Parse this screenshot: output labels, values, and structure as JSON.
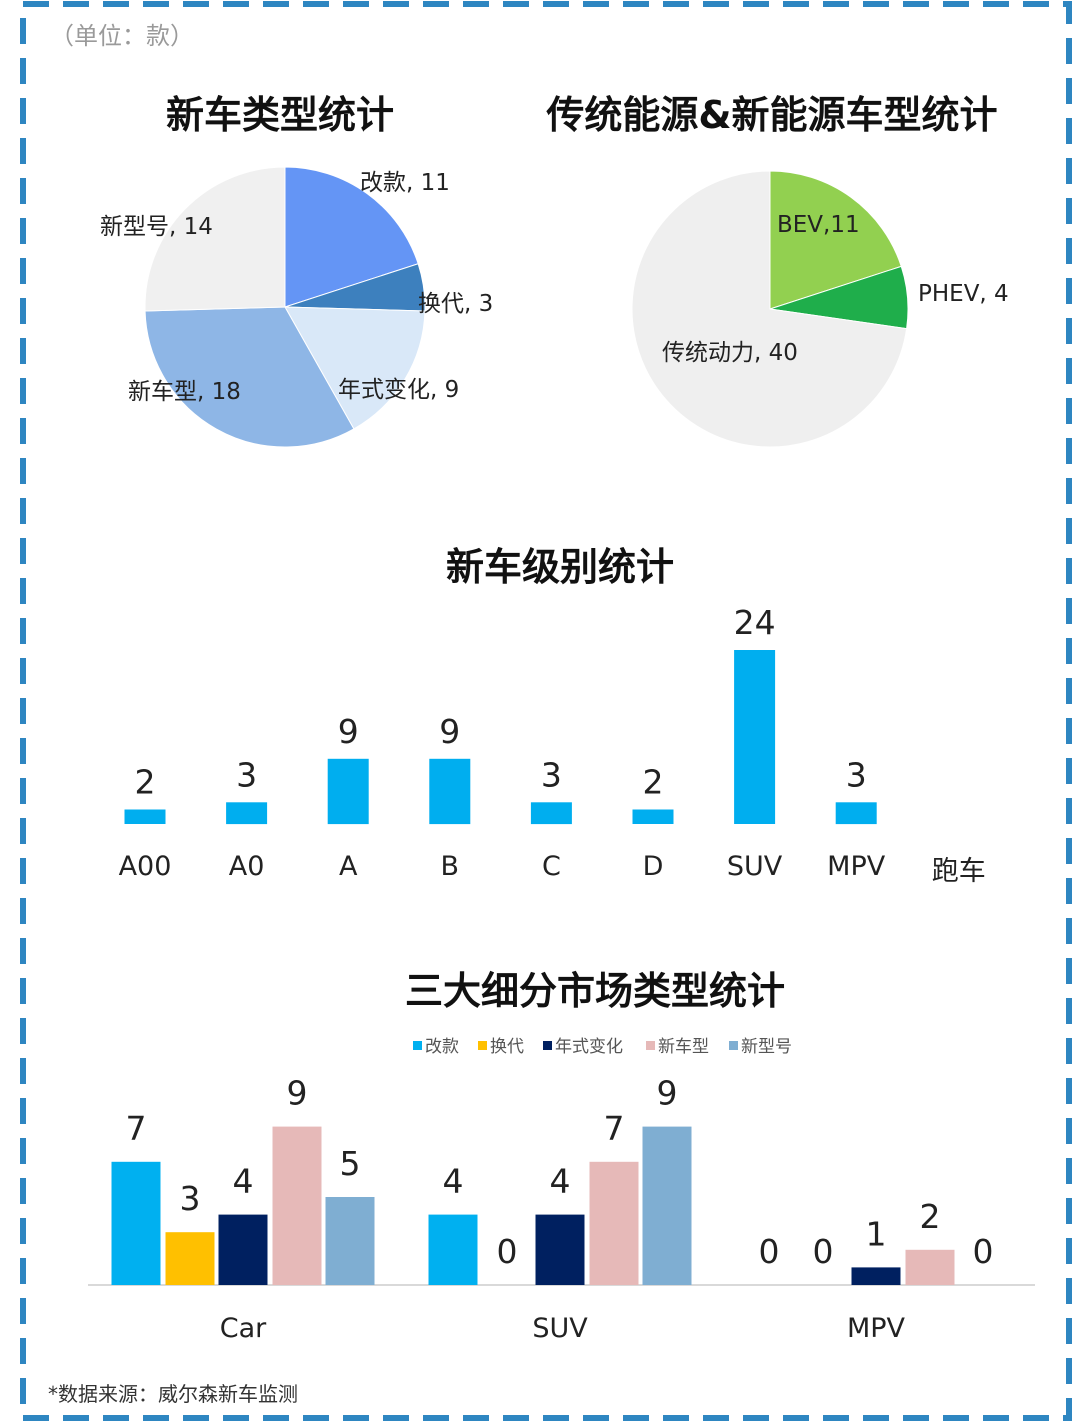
{
  "unit_note": "（单位：款）",
  "source_note": "*数据来源：威尔森新车监测",
  "chart_data": [
    {
      "id": "pie1",
      "type": "pie",
      "title": "新车类型统计",
      "slices": [
        {
          "label": "改款",
          "value": 11,
          "display": "改款, 11",
          "color": "#6495F5"
        },
        {
          "label": "换代",
          "value": 3,
          "display": "换代, 3",
          "color": "#3D80BE"
        },
        {
          "label": "年式变化",
          "value": 9,
          "display": "年式变化, 9",
          "color": "#D9E8F8"
        },
        {
          "label": "新车型",
          "value": 18,
          "display": "新车型, 18",
          "color": "#8EB6E6"
        },
        {
          "label": "新型号",
          "value": 14,
          "display": "新型号, 14",
          "color": "#F0F0F0"
        }
      ]
    },
    {
      "id": "pie2",
      "type": "pie",
      "title": "传统能源&新能源车型统计",
      "slices": [
        {
          "label": "BEV",
          "value": 11,
          "display": "BEV,11",
          "color": "#92D050"
        },
        {
          "label": "PHEV",
          "value": 4,
          "display": "PHEV, 4",
          "color": "#1FAE4B"
        },
        {
          "label": "传统动力",
          "value": 40,
          "display": "传统动力, 40",
          "color": "#EFEFEF"
        }
      ]
    },
    {
      "id": "bar1",
      "type": "bar",
      "title": "新车级别统计",
      "categories": [
        "A00",
        "A0",
        "A",
        "B",
        "C",
        "D",
        "SUV",
        "MPV",
        "跑车"
      ],
      "values": [
        2,
        3,
        9,
        9,
        3,
        2,
        24,
        3,
        null
      ],
      "color": "#00AEEF"
    },
    {
      "id": "bar2",
      "type": "bar",
      "title": "三大细分市场类型统计",
      "categories": [
        "Car",
        "SUV",
        "MPV"
      ],
      "series": [
        {
          "name": "改款",
          "values": [
            7,
            4,
            0
          ],
          "color": "#00B0F0"
        },
        {
          "name": "换代",
          "values": [
            3,
            0,
            0
          ],
          "color": "#FFC000"
        },
        {
          "name": "年式变化",
          "values": [
            4,
            4,
            1
          ],
          "color": "#002060"
        },
        {
          "name": "新车型",
          "values": [
            9,
            7,
            2
          ],
          "color": "#E6B9B8"
        },
        {
          "name": "新型号",
          "values": [
            5,
            9,
            0
          ],
          "color": "#7FAED2"
        }
      ],
      "legend": "top-center"
    }
  ]
}
